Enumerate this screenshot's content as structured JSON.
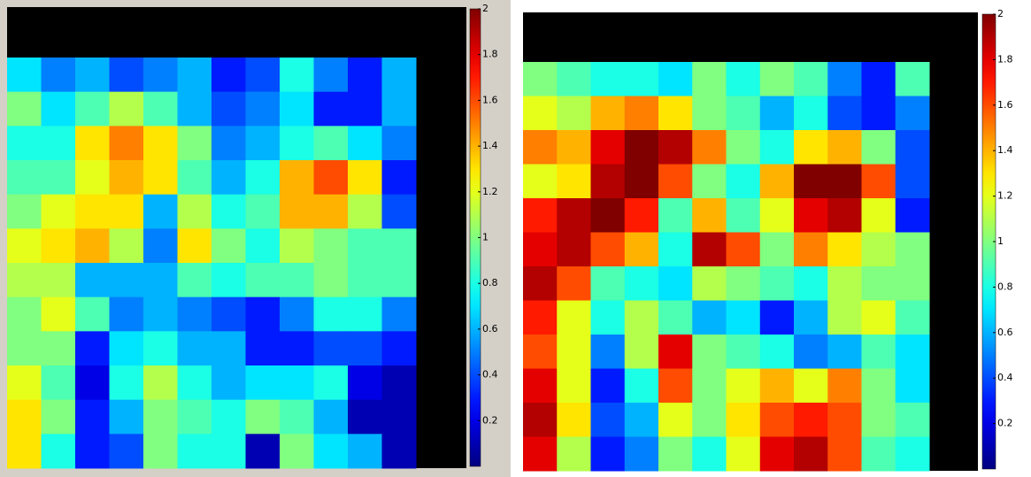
{
  "chart_data": [
    {
      "type": "heatmap",
      "colormap": "jet",
      "zlim": [
        0,
        2
      ],
      "colorbar_ticks": [
        0.2,
        0.4,
        0.6,
        0.8,
        1,
        1.2,
        1.4,
        1.6,
        1.8,
        2
      ],
      "values": [
        [
          0.7,
          0.5,
          0.6,
          0.4,
          0.5,
          0.6,
          0.3,
          0.4,
          0.8,
          0.5,
          0.3,
          0.6
        ],
        [
          1.0,
          0.7,
          0.9,
          1.1,
          0.9,
          0.6,
          0.4,
          0.5,
          0.7,
          0.3,
          0.3,
          0.6
        ],
        [
          0.8,
          0.8,
          1.3,
          1.5,
          1.3,
          1.0,
          0.5,
          0.6,
          0.8,
          0.9,
          0.7,
          0.5
        ],
        [
          0.9,
          0.9,
          1.2,
          1.4,
          1.3,
          0.9,
          0.6,
          0.8,
          1.4,
          1.6,
          1.3,
          0.3
        ],
        [
          1.0,
          1.2,
          1.3,
          1.3,
          0.6,
          1.1,
          0.8,
          0.9,
          1.4,
          1.4,
          1.1,
          0.4
        ],
        [
          1.2,
          1.3,
          1.4,
          1.1,
          0.5,
          1.3,
          1.0,
          0.8,
          1.1,
          1.0,
          0.9,
          0.9
        ],
        [
          1.1,
          1.1,
          0.6,
          0.6,
          0.6,
          0.9,
          0.8,
          0.9,
          0.9,
          1.0,
          0.9,
          0.9
        ],
        [
          1.0,
          1.2,
          0.9,
          0.5,
          0.6,
          0.5,
          0.4,
          0.3,
          0.5,
          0.8,
          0.8,
          0.5
        ],
        [
          1.0,
          1.0,
          0.3,
          0.7,
          0.8,
          0.6,
          0.6,
          0.3,
          0.3,
          0.4,
          0.4,
          0.3
        ],
        [
          1.2,
          0.9,
          0.2,
          0.8,
          1.1,
          0.8,
          0.6,
          0.7,
          0.7,
          0.8,
          0.2,
          0.1
        ],
        [
          1.3,
          1.0,
          0.3,
          0.6,
          1.0,
          0.9,
          0.8,
          1.0,
          0.9,
          0.6,
          0.1,
          0.1
        ],
        [
          1.3,
          0.8,
          0.3,
          0.4,
          1.0,
          0.8,
          0.8,
          0.1,
          1.0,
          0.7,
          0.6,
          0.1
        ]
      ]
    },
    {
      "type": "heatmap",
      "colormap": "jet",
      "zlim": [
        0,
        2
      ],
      "colorbar_ticks": [
        0.2,
        0.4,
        0.6,
        0.8,
        1,
        1.2,
        1.4,
        1.6,
        1.8,
        2
      ],
      "values": [
        [
          1.0,
          0.9,
          0.8,
          0.8,
          0.7,
          1.0,
          0.8,
          1.0,
          0.9,
          0.5,
          0.3,
          0.9
        ],
        [
          1.2,
          1.1,
          1.4,
          1.5,
          1.3,
          1.0,
          0.9,
          0.6,
          0.8,
          0.4,
          0.3,
          0.5
        ],
        [
          1.5,
          1.4,
          1.8,
          2.0,
          1.9,
          1.5,
          1.0,
          0.8,
          1.3,
          1.4,
          1.0,
          0.4
        ],
        [
          1.2,
          1.3,
          1.9,
          2.0,
          1.6,
          1.0,
          0.8,
          1.4,
          2.0,
          2.0,
          1.6,
          0.4
        ],
        [
          1.7,
          1.9,
          2.0,
          1.7,
          0.9,
          1.4,
          0.9,
          1.2,
          1.8,
          1.9,
          1.2,
          0.3
        ],
        [
          1.8,
          1.9,
          1.6,
          1.4,
          0.8,
          1.9,
          1.6,
          1.0,
          1.5,
          1.3,
          1.1,
          1.0
        ],
        [
          1.9,
          1.6,
          0.9,
          0.8,
          0.7,
          1.1,
          1.0,
          0.9,
          0.8,
          1.1,
          1.0,
          1.0
        ],
        [
          1.7,
          1.2,
          0.8,
          1.1,
          0.9,
          0.6,
          0.7,
          0.3,
          0.6,
          1.1,
          1.2,
          0.9
        ],
        [
          1.6,
          1.2,
          0.5,
          1.1,
          1.8,
          1.0,
          0.9,
          0.8,
          0.5,
          0.6,
          0.9,
          0.7
        ],
        [
          1.8,
          1.2,
          0.3,
          0.8,
          1.6,
          1.0,
          1.2,
          1.4,
          1.2,
          1.5,
          1.0,
          0.7
        ],
        [
          1.9,
          1.3,
          0.4,
          0.6,
          1.2,
          1.0,
          1.3,
          1.6,
          1.7,
          1.6,
          1.0,
          0.9
        ],
        [
          1.8,
          1.1,
          0.3,
          0.5,
          1.0,
          0.8,
          1.2,
          1.8,
          1.9,
          1.6,
          0.9,
          0.8
        ]
      ]
    }
  ]
}
